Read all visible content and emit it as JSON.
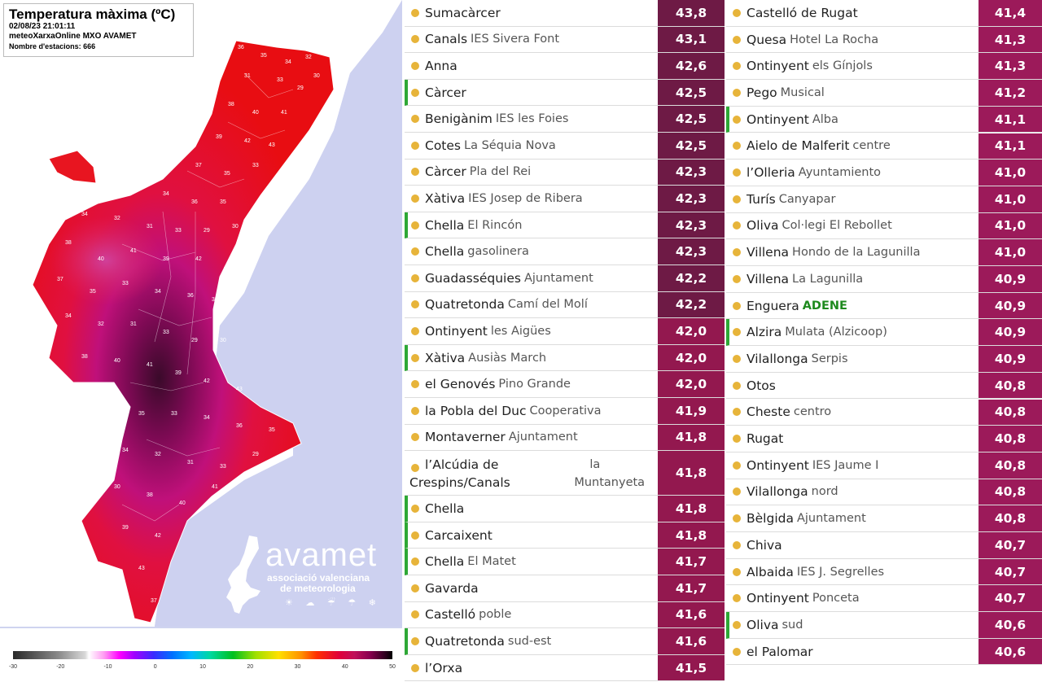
{
  "map": {
    "title": "Temperatura màxima (ºC)",
    "timestamp": "02/08/23 21:01:11",
    "source": "meteoXarxaOnline MXO AVAMET",
    "stations_label": "Nombre d'estacions: 666",
    "logo": {
      "word": "avamet",
      "sub1": "associació valenciana",
      "sub2": "de meteorologia",
      "icons": "☀ ☁ ☔ ☂ ❄"
    },
    "scale_ticks": [
      "-30",
      "-20",
      "-10",
      "0",
      "10",
      "20",
      "30",
      "40",
      "50"
    ],
    "map_numbers": [
      "36",
      "35",
      "34",
      "32",
      "31",
      "33",
      "29",
      "30",
      "38",
      "40",
      "41",
      "39",
      "42",
      "43",
      "37",
      "35",
      "33",
      "34"
    ]
  },
  "colors": {
    "value_dark": "#6e1a45",
    "value_mid": "#93184f",
    "value_light": "#9c1a5a",
    "dot": "#e7b43a",
    "marker_green": "#2ea836"
  },
  "left_rows": [
    {
      "town": "Sumacàrcer",
      "station": "",
      "value": "43,8",
      "marked": false
    },
    {
      "town": "Canals",
      "station": "IES Sivera Font",
      "value": "43,1",
      "marked": false
    },
    {
      "town": "Anna",
      "station": "",
      "value": "42,6",
      "marked": false
    },
    {
      "town": "Càrcer",
      "station": "",
      "value": "42,5",
      "marked": true
    },
    {
      "town": "Benigànim",
      "station": "IES les Foies",
      "value": "42,5",
      "marked": false
    },
    {
      "town": "Cotes",
      "station": "La Séquia Nova",
      "value": "42,5",
      "marked": false
    },
    {
      "town": "Càrcer",
      "station": "Pla del Rei",
      "value": "42,3",
      "marked": false
    },
    {
      "town": "Xàtiva",
      "station": "IES Josep de Ribera",
      "value": "42,3",
      "marked": false
    },
    {
      "town": "Chella",
      "station": "El Rincón",
      "value": "42,3",
      "marked": true
    },
    {
      "town": "Chella",
      "station": "gasolinera",
      "value": "42,3",
      "marked": false
    },
    {
      "town": "Guadasséquies",
      "station": "Ajuntament",
      "value": "42,2",
      "marked": false
    },
    {
      "town": "Quatretonda",
      "station": "Camí del Molí",
      "value": "42,2",
      "marked": false
    },
    {
      "town": "Ontinyent",
      "station": "les Aigües",
      "value": "42,0",
      "marked": false
    },
    {
      "town": "Xàtiva",
      "station": "Ausiàs March",
      "value": "42,0",
      "marked": true
    },
    {
      "town": "el Genovés",
      "station": "Pino Grande",
      "value": "42,0",
      "marked": false
    },
    {
      "town": "la Pobla del Duc",
      "station": "Cooperativa",
      "value": "41,9",
      "marked": false
    },
    {
      "town": "Montaverner",
      "station": "Ajuntament",
      "value": "41,8",
      "marked": false
    },
    {
      "town": "l’Alcúdia de Crespins/Canals",
      "station": "la Muntanyeta",
      "value": "41,8",
      "marked": false,
      "tall": true
    },
    {
      "town": "Chella",
      "station": "",
      "value": "41,8",
      "marked": true
    },
    {
      "town": "Carcaixent",
      "station": "",
      "value": "41,8",
      "marked": true
    },
    {
      "town": "Chella",
      "station": "El Matet",
      "value": "41,7",
      "marked": true
    },
    {
      "town": "Gavarda",
      "station": "",
      "value": "41,7",
      "marked": false
    },
    {
      "town": "Castelló",
      "station": "poble",
      "value": "41,6",
      "marked": false
    },
    {
      "town": "Quatretonda",
      "station": "sud-est",
      "value": "41,6",
      "marked": true
    },
    {
      "town": "l’Orxa",
      "station": "",
      "value": "41,5",
      "marked": false
    }
  ],
  "right_rows": [
    {
      "town": "Castelló de Rugat",
      "station": "",
      "value": "41,4",
      "marked": false
    },
    {
      "town": "Quesa",
      "station": "Hotel La Rocha",
      "value": "41,3",
      "marked": false
    },
    {
      "town": "Ontinyent",
      "station": "els Gínjols",
      "value": "41,3",
      "marked": false
    },
    {
      "town": "Pego",
      "station": "Musical",
      "value": "41,2",
      "marked": false
    },
    {
      "town": "Ontinyent",
      "station": "Alba",
      "value": "41,1",
      "marked": true
    },
    {
      "town": "Aielo de Malferit",
      "station": "centre",
      "value": "41,1",
      "marked": false
    },
    {
      "town": "l’Olleria",
      "station": "Ayuntamiento",
      "value": "41,0",
      "marked": false
    },
    {
      "town": "Turís",
      "station": " Canyapar",
      "value": "41,0",
      "marked": false
    },
    {
      "town": "Oliva",
      "station": "Col·legi El Rebollet",
      "value": "41,0",
      "marked": false
    },
    {
      "town": "Villena",
      "station": "Hondo de la Lagunilla",
      "value": "41,0",
      "marked": false
    },
    {
      "town": "Villena",
      "station": "La Lagunilla",
      "value": "40,9",
      "marked": false
    },
    {
      "town": "Enguera",
      "station": "ADENE",
      "value": "40,9",
      "marked": false,
      "adene": true
    },
    {
      "town": "Alzira",
      "station": "Mulata (Alzicoop)",
      "value": "40,9",
      "marked": true
    },
    {
      "town": "Vilallonga",
      "station": "Serpis",
      "value": "40,9",
      "marked": false
    },
    {
      "town": "Otos",
      "station": "",
      "value": "40,8",
      "marked": false
    },
    {
      "town": "Cheste",
      "station": "centro",
      "value": "40,8",
      "marked": false
    },
    {
      "town": "Rugat",
      "station": "",
      "value": "40,8",
      "marked": false
    },
    {
      "town": "Ontinyent",
      "station": "IES Jaume I",
      "value": "40,8",
      "marked": false
    },
    {
      "town": "Vilallonga",
      "station": "nord",
      "value": "40,8",
      "marked": false
    },
    {
      "town": "Bèlgida",
      "station": "Ajuntament",
      "value": "40,8",
      "marked": false
    },
    {
      "town": "Chiva",
      "station": "",
      "value": "40,7",
      "marked": false
    },
    {
      "town": "Albaida",
      "station": "IES J. Segrelles",
      "value": "40,7",
      "marked": false
    },
    {
      "town": "Ontinyent",
      "station": "Ponceta",
      "value": "40,7",
      "marked": false
    },
    {
      "town": "Oliva",
      "station": "sud",
      "value": "40,6",
      "marked": true
    },
    {
      "town": "el Palomar",
      "station": "",
      "value": "40,6",
      "marked": false
    }
  ]
}
